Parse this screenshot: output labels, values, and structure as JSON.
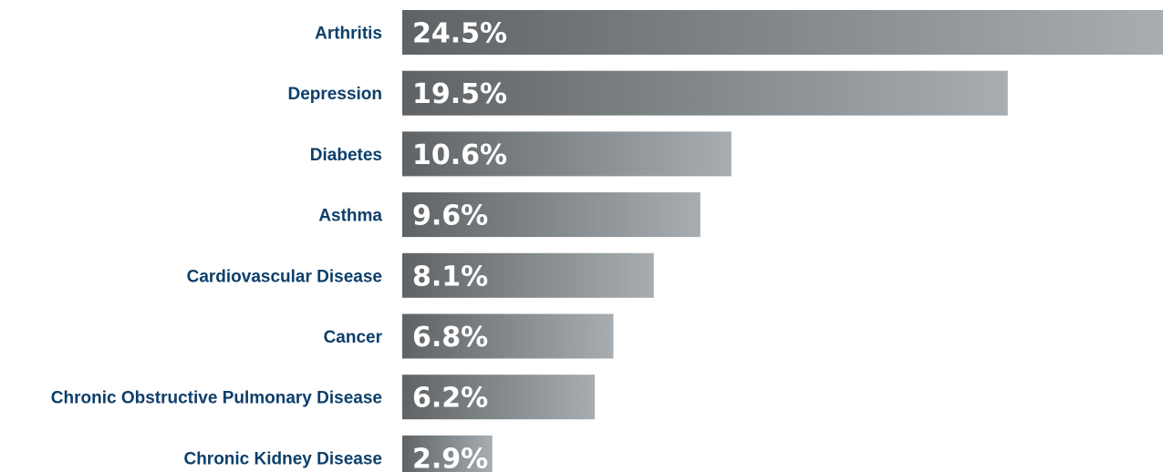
{
  "chart_data": {
    "type": "bar",
    "orientation": "horizontal",
    "categories": [
      "Arthritis",
      "Depression",
      "Diabetes",
      "Asthma",
      "Cardiovascular Disease",
      "Cancer",
      "Chronic Obstructive Pulmonary Disease",
      "Chronic Kidney Disease"
    ],
    "values": [
      24.5,
      19.5,
      10.6,
      9.6,
      8.1,
      6.8,
      6.2,
      2.9
    ],
    "value_labels": [
      "24.5%",
      "19.5%",
      "10.6%",
      "9.6%",
      "8.1%",
      "6.8%",
      "6.2%",
      "2.9%"
    ],
    "xlim": [
      0,
      24.5
    ],
    "grid": false,
    "legend": "none",
    "colors": {
      "label": "#0d3f6b",
      "bar_start": "#5f6366",
      "bar_end": "#a7adb1",
      "value_text": "#ffffff"
    }
  }
}
